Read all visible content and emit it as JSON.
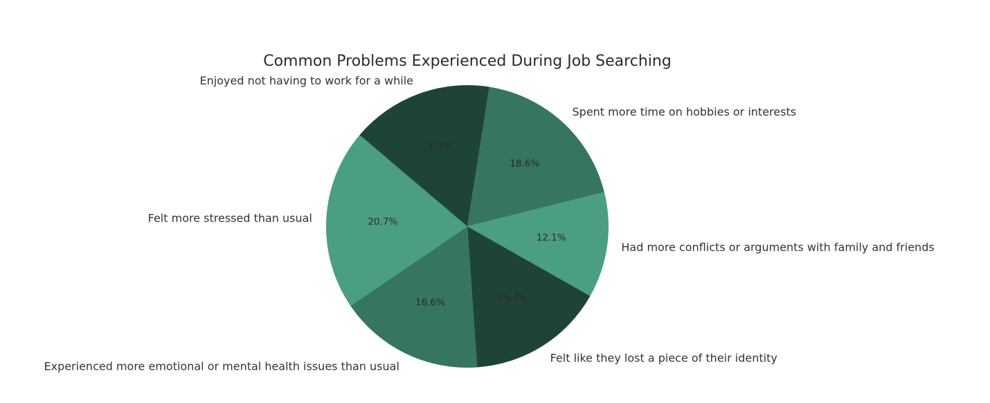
{
  "chart_data": {
    "type": "pie",
    "title": "Common Problems Experienced During Job Searching",
    "slices": [
      {
        "label": "Spent more time on hobbies or interests",
        "value": 18.6,
        "pct_label": "18.6%",
        "color": "#367560"
      },
      {
        "label": "Had more conflicts or arguments with family and friends",
        "value": 12.1,
        "pct_label": "12.1%",
        "color": "#4a9e81"
      },
      {
        "label": "Felt like they lost a piece of their identity",
        "value": 15.7,
        "pct_label": "15.7%",
        "color": "#1d4437"
      },
      {
        "label": "Experienced more emotional or mental health issues than usual",
        "value": 16.6,
        "pct_label": "16.6%",
        "color": "#367560"
      },
      {
        "label": "Felt more stressed than usual",
        "value": 20.7,
        "pct_label": "20.7%",
        "color": "#4a9e81"
      },
      {
        "label": "Enjoyed not having to work for a while",
        "value": 16.3,
        "pct_label": "16.3%",
        "color": "#1d4437"
      }
    ],
    "start_angle_deg": 81,
    "direction": "clockwise",
    "legend": "none"
  }
}
